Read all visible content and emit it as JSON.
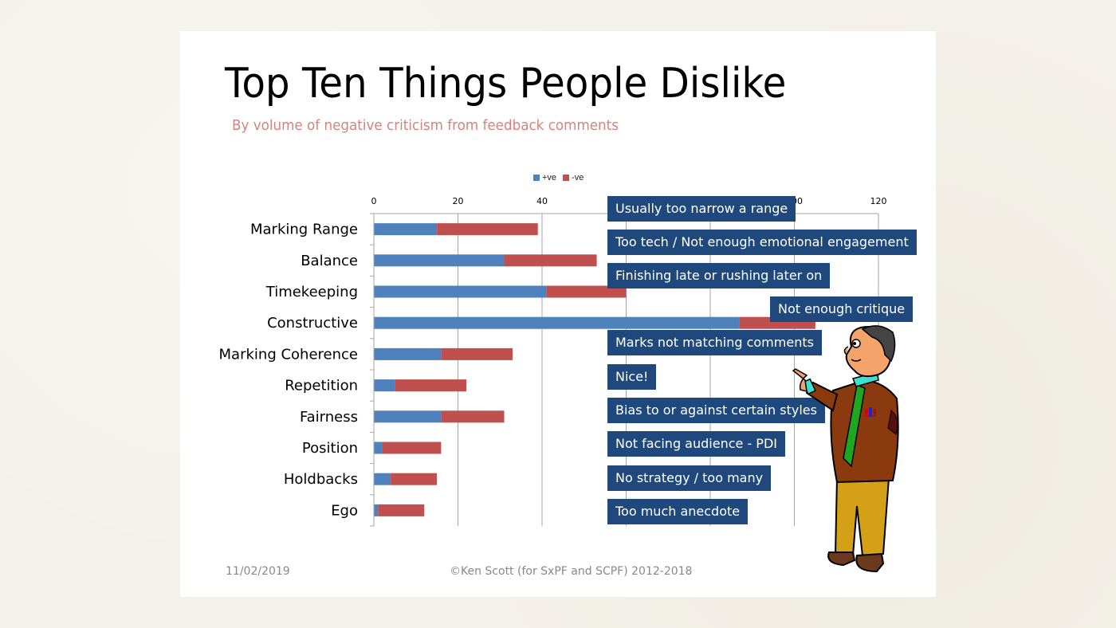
{
  "slide": {
    "title": "Top Ten Things People Dislike",
    "subtitle": "By volume of negative criticism from feedback comments",
    "footer_date": "11/02/2019",
    "footer_copyright": "©Ken Scott (for SxPF and SCPF) 2012-2018"
  },
  "colors": {
    "positive": "#4f81bd",
    "negative": "#c0504d",
    "callout_bg": "#1f497d",
    "subtitle": "#d9827c"
  },
  "chart_data": {
    "type": "bar",
    "orientation": "horizontal",
    "stacked": true,
    "title": "",
    "xlabel": "",
    "ylabel": "",
    "xlim": [
      0,
      120
    ],
    "x_ticks": [
      0,
      20,
      40,
      60,
      80,
      100,
      120
    ],
    "grid": true,
    "legend_position": "top",
    "categories": [
      "Marking Range",
      "Balance",
      "Timekeeping",
      "Constructive",
      "Marking Coherence",
      "Repetition",
      "Fairness",
      "Position",
      "Holdbacks",
      "Ego"
    ],
    "series": [
      {
        "name": "+ve",
        "values": [
          15,
          31,
          41,
          87,
          16,
          5,
          16,
          2,
          4,
          1
        ]
      },
      {
        "name": "-ve",
        "values": [
          24,
          22,
          19,
          18,
          17,
          17,
          15,
          14,
          11,
          11
        ]
      }
    ]
  },
  "callouts": [
    "Usually too narrow a range",
    "Too tech / Not enough emotional engagement",
    "Finishing late or rushing later on",
    "Not enough critique",
    "Marks not matching comments",
    "Nice!",
    "Bias to or against certain styles",
    "Not facing audience - PDI",
    "No strategy / too many",
    "Too much anecdote"
  ],
  "illustration": "cartoon-man-pointing"
}
